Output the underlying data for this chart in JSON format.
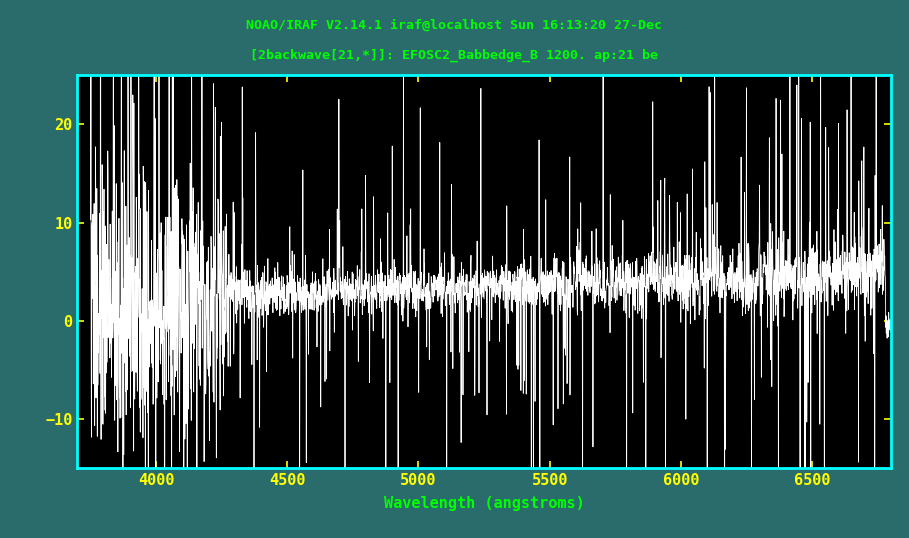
{
  "title_line1": "NOAO/IRAF V2.14.1 iraf@localhost Sun 16:13:20 27-Dec",
  "title_line2": "[2backwave[21,*]]: EFOSC2_Babbedge_B 1200. ap:21 be",
  "xlabel": "Wavelength (angstroms)",
  "xlim": [
    3700,
    6800
  ],
  "ylim": [
    -15,
    25
  ],
  "yticks": [
    -10,
    0,
    10,
    20
  ],
  "xticks": [
    4000,
    4500,
    5000,
    5500,
    6000,
    6500
  ],
  "background_color": "#000000",
  "outer_background": "#2a6b6b",
  "border_color": "#00ffff",
  "title_color": "#00ff00",
  "tick_label_color": "#ffff00",
  "xlabel_color": "#00ff00",
  "line_color": "#ffffff",
  "seed": 137,
  "n_points": 3000
}
